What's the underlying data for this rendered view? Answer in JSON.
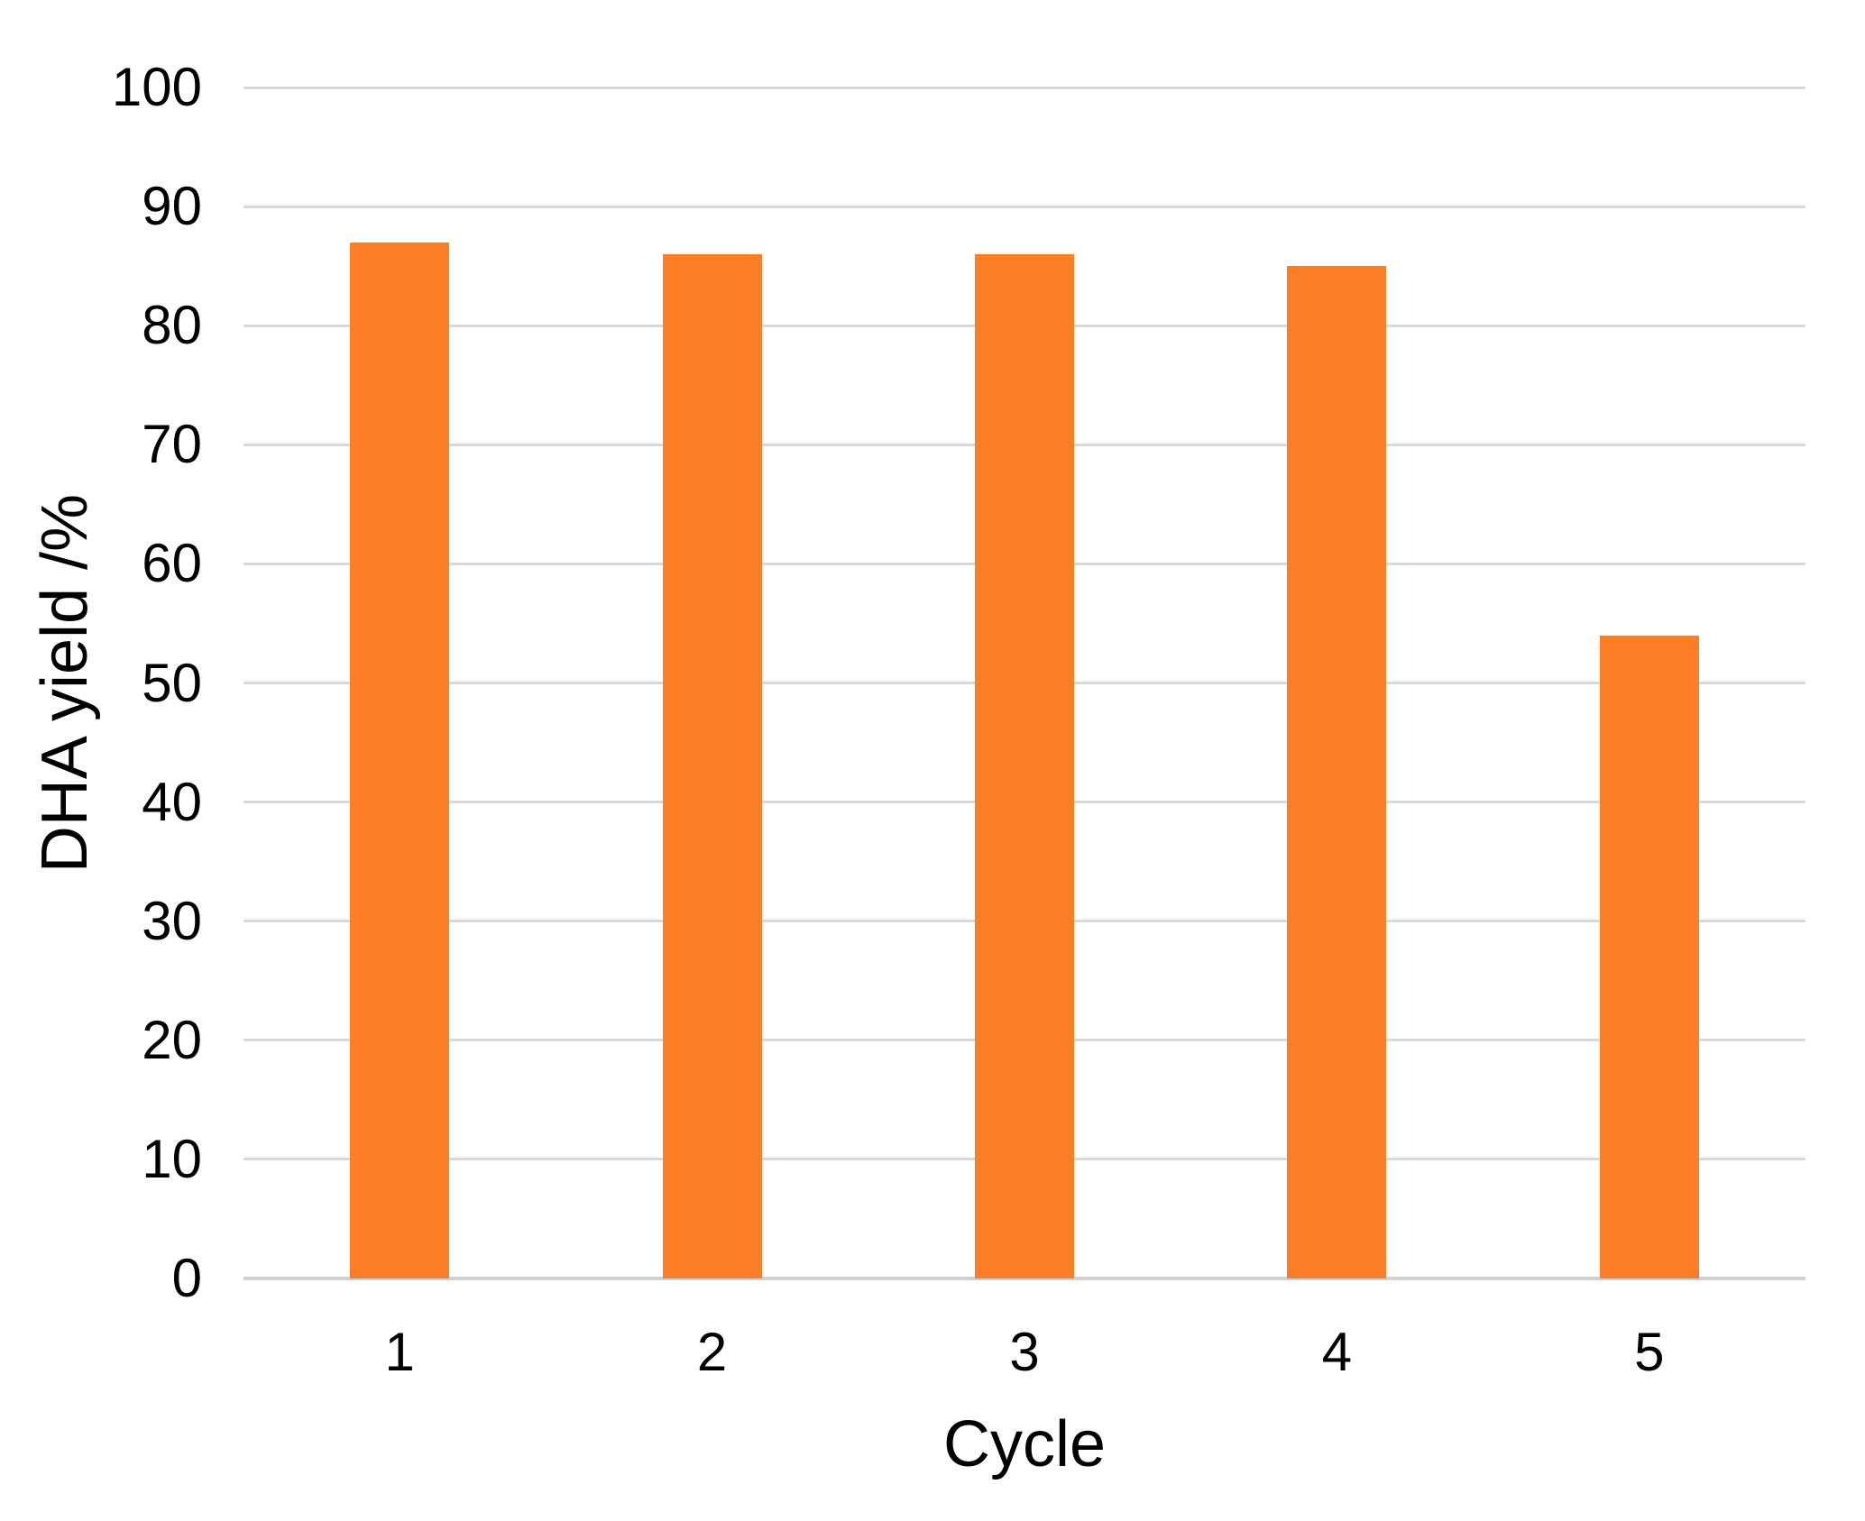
{
  "chart_data": {
    "type": "bar",
    "title": "",
    "xlabel": "Cycle",
    "ylabel": "DHA yield /%",
    "categories": [
      "1",
      "2",
      "3",
      "4",
      "5"
    ],
    "values": [
      87,
      86,
      86,
      85,
      54
    ],
    "ylim": [
      0,
      100
    ],
    "ytick_step": 10,
    "yticks": [
      0,
      10,
      20,
      30,
      40,
      50,
      60,
      70,
      80,
      90,
      100
    ],
    "grid": true,
    "legend_position": "none",
    "colors": {
      "bar": "#FB7E27",
      "gridline": "#D9D9D9",
      "axis_line": "#D2D0D0",
      "text": "#000000",
      "background": "#FFFFFF"
    }
  }
}
